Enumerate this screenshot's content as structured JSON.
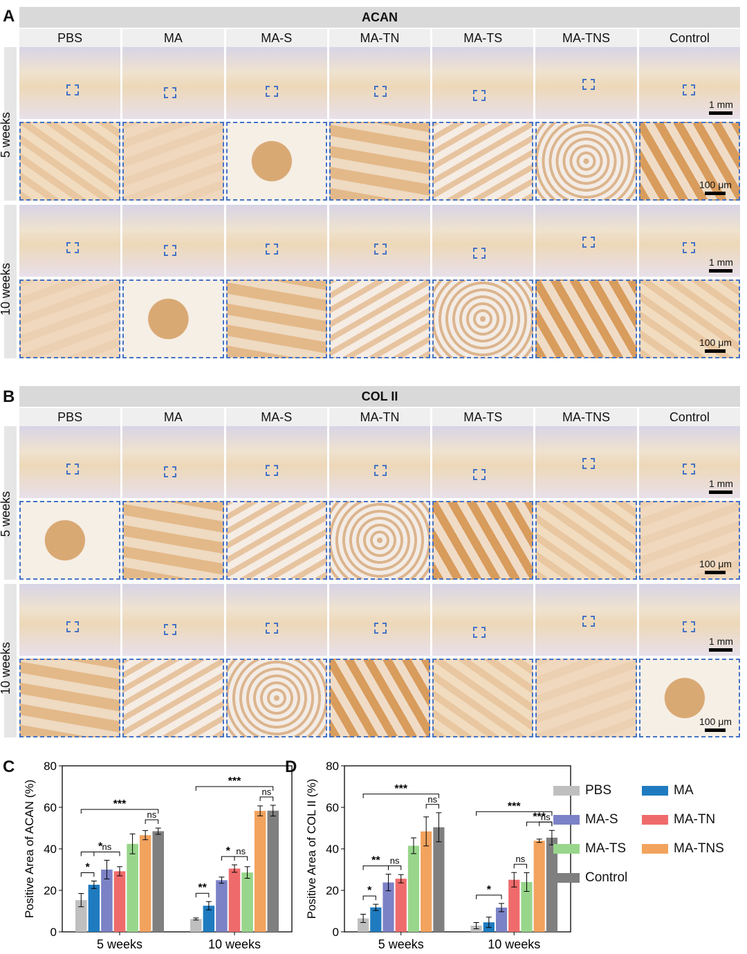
{
  "panels": {
    "A": {
      "letter": "A",
      "stain": "ACAN"
    },
    "B": {
      "letter": "B",
      "stain": "COL II"
    },
    "C": {
      "letter": "C"
    },
    "D": {
      "letter": "D"
    }
  },
  "groups": [
    "PBS",
    "MA",
    "MA-S",
    "MA-TN",
    "MA-TS",
    "MA-TNS",
    "Control"
  ],
  "timepoints": [
    "5 weeks",
    "10 weeks"
  ],
  "scale_bars": {
    "overview": "1 mm",
    "zoom": "100 μm"
  },
  "colors": {
    "PBS": "#bfbfbf",
    "MA": "#1f7bbf",
    "MA-S": "#7c82c6",
    "MA-TN": "#ef6b6b",
    "MA-TS": "#98d68b",
    "MA-TNS": "#f2a35e",
    "Control": "#7f7f7f",
    "roi": "#4472c4",
    "header": "#d9d9d9"
  },
  "legend": [
    "PBS",
    "MA",
    "MA-S",
    "MA-TN",
    "MA-TS",
    "MA-TNS",
    "Control"
  ],
  "chart_data": [
    {
      "type": "bar",
      "panel": "C",
      "ylabel": "Positive Area of ACAN (%)",
      "ylim": [
        0,
        80
      ],
      "yticks": [
        0,
        20,
        40,
        60,
        80
      ],
      "categories": [
        "5 weeks",
        "10 weeks"
      ],
      "series": [
        {
          "name": "PBS",
          "values": [
            15.3,
            6.2
          ],
          "errors": [
            3.2,
            0.5
          ]
        },
        {
          "name": "MA",
          "values": [
            22.7,
            12.6
          ],
          "errors": [
            1.8,
            2.0
          ]
        },
        {
          "name": "MA-S",
          "values": [
            30.0,
            24.9
          ],
          "errors": [
            4.5,
            1.5
          ]
        },
        {
          "name": "MA-TN",
          "values": [
            29.2,
            30.5
          ],
          "errors": [
            2.2,
            1.8
          ]
        },
        {
          "name": "MA-TS",
          "values": [
            42.4,
            28.6
          ],
          "errors": [
            4.8,
            2.8
          ]
        },
        {
          "name": "MA-TNS",
          "values": [
            46.6,
            58.3
          ],
          "errors": [
            2.2,
            2.4
          ]
        },
        {
          "name": "Control",
          "values": [
            48.5,
            58.4
          ],
          "errors": [
            1.5,
            2.6
          ]
        }
      ],
      "significance": [
        {
          "timepoint": 0,
          "from": 0,
          "to": 1,
          "label": "*"
        },
        {
          "timepoint": 0,
          "from": 1,
          "to": 3,
          "label": "ns"
        },
        {
          "timepoint": 0,
          "from": 0,
          "to": 3,
          "label": "*"
        },
        {
          "timepoint": 0,
          "from": 0,
          "to": 6,
          "label": "***"
        },
        {
          "timepoint": 0,
          "from": 5,
          "to": 6,
          "label": "ns"
        },
        {
          "timepoint": 1,
          "from": 0,
          "to": 1,
          "label": "**"
        },
        {
          "timepoint": 1,
          "from": 3,
          "to": 4,
          "label": "ns"
        },
        {
          "timepoint": 1,
          "from": 2,
          "to": 3,
          "label": "*"
        },
        {
          "timepoint": 1,
          "from": 0,
          "to": 6,
          "label": "***"
        },
        {
          "timepoint": 1,
          "from": 5,
          "to": 6,
          "label": "ns"
        }
      ]
    },
    {
      "type": "bar",
      "panel": "D",
      "ylabel": "Positive Area of COL II (%)",
      "ylim": [
        0,
        80
      ],
      "yticks": [
        0,
        20,
        40,
        60,
        80
      ],
      "categories": [
        "5 weeks",
        "10 weeks"
      ],
      "series": [
        {
          "name": "PBS",
          "values": [
            6.5,
            3.0
          ],
          "errors": [
            2.0,
            1.5
          ]
        },
        {
          "name": "MA",
          "values": [
            11.8,
            4.6
          ],
          "errors": [
            1.5,
            2.5
          ]
        },
        {
          "name": "MA-S",
          "values": [
            23.8,
            11.7
          ],
          "errors": [
            4.0,
            2.0
          ]
        },
        {
          "name": "MA-TN",
          "values": [
            25.6,
            25.1
          ],
          "errors": [
            2.0,
            3.5
          ]
        },
        {
          "name": "MA-TS",
          "values": [
            41.5,
            24.0
          ],
          "errors": [
            3.8,
            4.5
          ]
        },
        {
          "name": "MA-TNS",
          "values": [
            48.4,
            43.9
          ],
          "errors": [
            7.0,
            0.8
          ]
        },
        {
          "name": "Control",
          "values": [
            50.4,
            45.4
          ],
          "errors": [
            7.0,
            3.5
          ]
        }
      ],
      "significance": [
        {
          "timepoint": 0,
          "from": 0,
          "to": 1,
          "label": "*"
        },
        {
          "timepoint": 0,
          "from": 0,
          "to": 2,
          "label": "**"
        },
        {
          "timepoint": 0,
          "from": 2,
          "to": 3,
          "label": "ns"
        },
        {
          "timepoint": 0,
          "from": 0,
          "to": 6,
          "label": "***"
        },
        {
          "timepoint": 0,
          "from": 5,
          "to": 6,
          "label": "ns"
        },
        {
          "timepoint": 1,
          "from": 0,
          "to": 2,
          "label": "*"
        },
        {
          "timepoint": 1,
          "from": 3,
          "to": 4,
          "label": "ns"
        },
        {
          "timepoint": 1,
          "from": 4,
          "to": 6,
          "label": "***"
        },
        {
          "timepoint": 1,
          "from": 0,
          "to": 6,
          "label": "***"
        },
        {
          "timepoint": 1,
          "from": 5,
          "to": 6,
          "label": "ns"
        }
      ]
    }
  ]
}
